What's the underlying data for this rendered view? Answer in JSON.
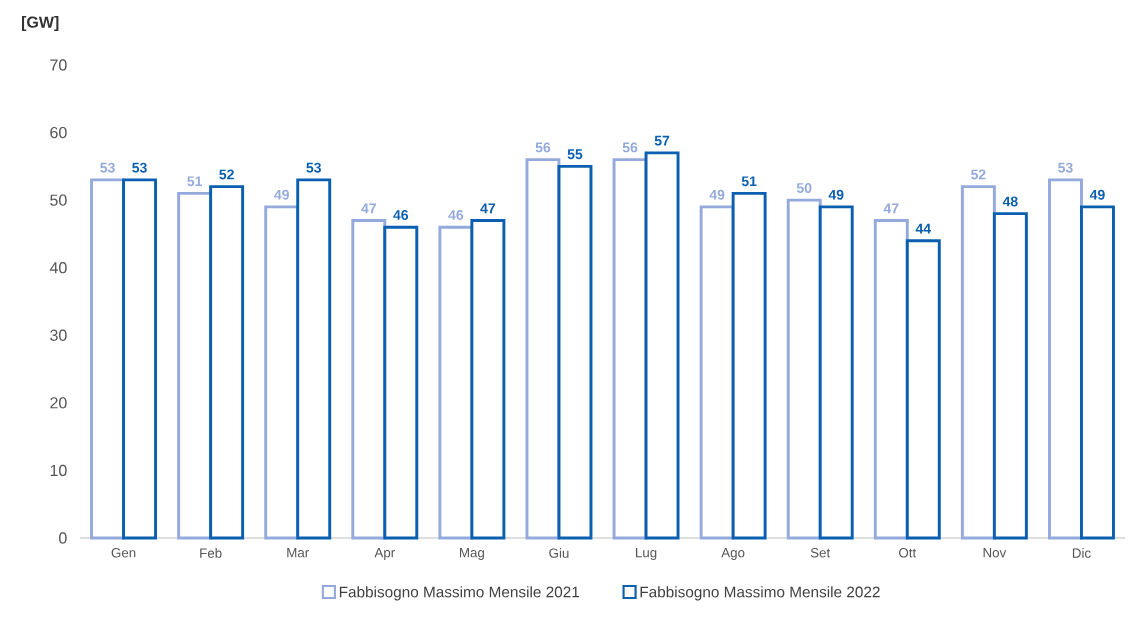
{
  "chart_data": {
    "type": "bar",
    "ylabel": "[GW]",
    "categories": [
      "Gen",
      "Feb",
      "Mar",
      "Apr",
      "Mag",
      "Giu",
      "Lug",
      "Ago",
      "Set",
      "Ott",
      "Nov",
      "Dic"
    ],
    "series": [
      {
        "name": "Fabbisogno Massimo Mensile 2021",
        "color": "#94aadc",
        "values": [
          53,
          51,
          49,
          47,
          46,
          56,
          56,
          49,
          50,
          47,
          52,
          53
        ]
      },
      {
        "name": "Fabbisogno Massimo Mensile 2022",
        "color": "#0a5fb0",
        "values": [
          53,
          52,
          53,
          46,
          47,
          55,
          57,
          51,
          49,
          44,
          48,
          49
        ]
      }
    ],
    "ylim": [
      0,
      70
    ],
    "yticks": [
      0,
      10,
      20,
      30,
      40,
      50,
      60,
      70
    ],
    "data_labels": true,
    "grid": false,
    "legend": "bottom"
  }
}
